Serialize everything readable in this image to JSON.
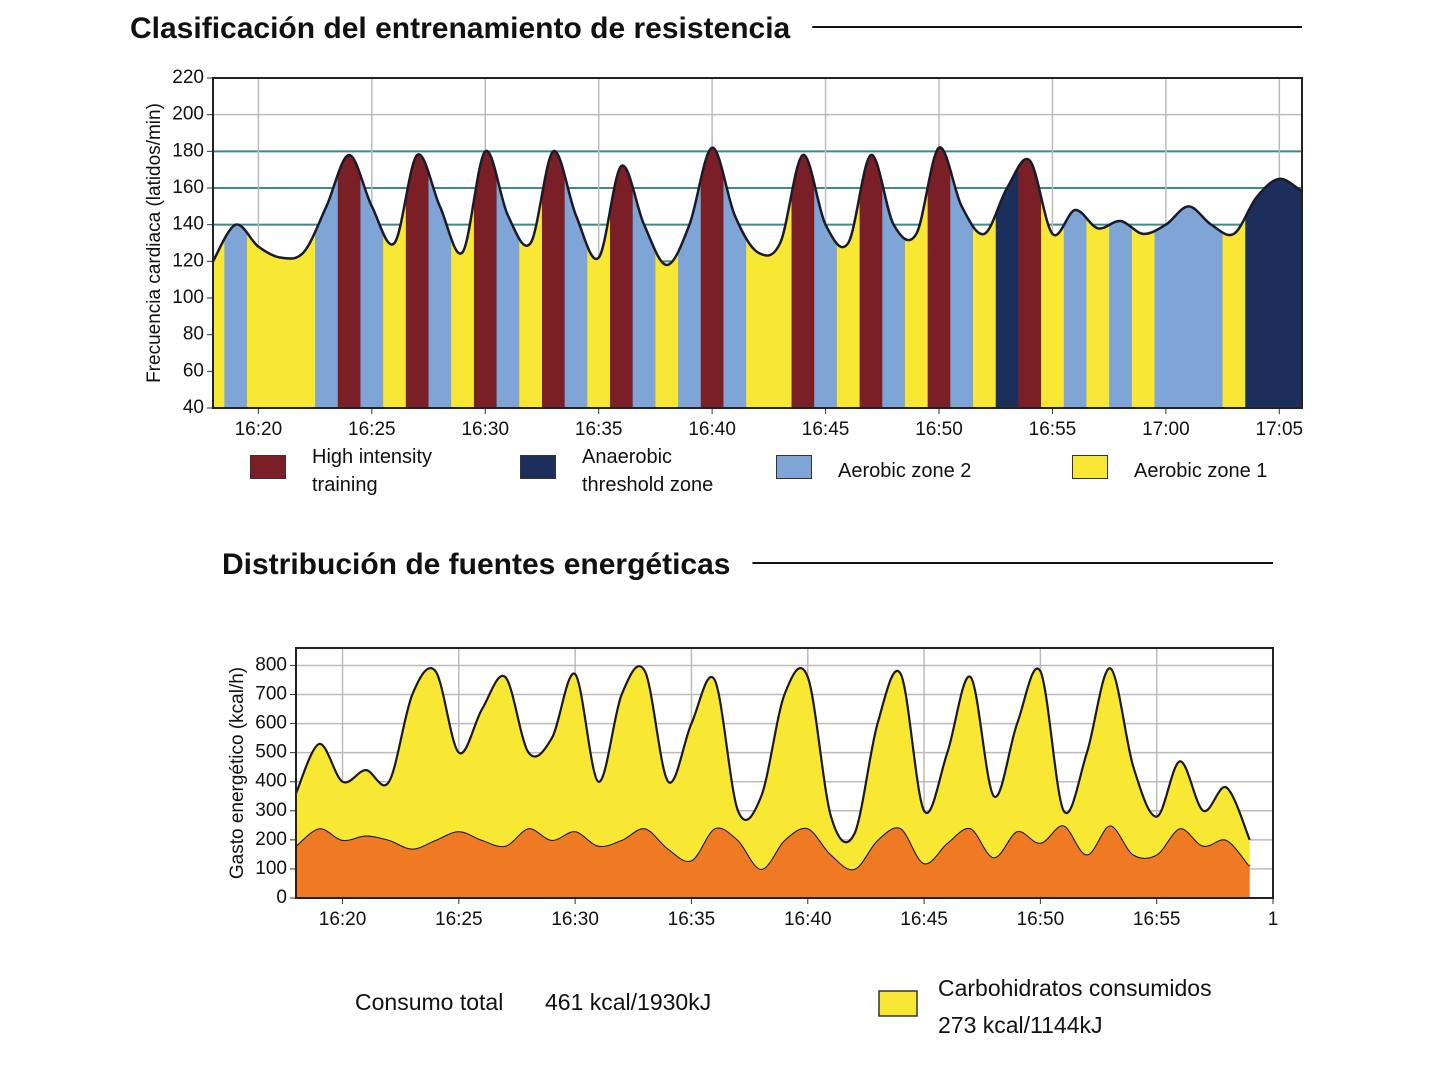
{
  "chart_data": [
    {
      "type": "zone_area",
      "title": "Clasificación del entrenamiento de resistencia",
      "y_label": "Frecuencia cardiaca (latidos/min)",
      "x": [
        "16:18",
        "16:19",
        "16:20",
        "16:21",
        "16:22",
        "16:23",
        "16:24",
        "16:25",
        "16:26",
        "16:27",
        "16:28",
        "16:29",
        "16:30",
        "16:31",
        "16:32",
        "16:33",
        "16:34",
        "16:35",
        "16:36",
        "16:37",
        "16:38",
        "16:39",
        "16:40",
        "16:41",
        "16:42",
        "16:43",
        "16:44",
        "16:45",
        "16:46",
        "16:47",
        "16:48",
        "16:49",
        "16:50",
        "16:51",
        "16:52",
        "16:53",
        "16:54",
        "16:55",
        "16:56",
        "16:57",
        "16:58",
        "16:59",
        "17:00",
        "17:01",
        "17:02",
        "17:03",
        "17:04",
        "17:05",
        "17:06"
      ],
      "values": [
        120,
        140,
        128,
        122,
        125,
        150,
        178,
        150,
        130,
        178,
        150,
        125,
        180,
        145,
        130,
        180,
        145,
        122,
        172,
        140,
        118,
        140,
        182,
        145,
        125,
        130,
        178,
        140,
        130,
        178,
        140,
        135,
        182,
        150,
        135,
        160,
        175,
        135,
        148,
        138,
        142,
        135,
        140,
        150,
        140,
        135,
        155,
        165,
        158
      ],
      "zone": [
        3,
        2,
        3,
        3,
        3,
        2,
        0,
        2,
        3,
        0,
        2,
        3,
        0,
        2,
        3,
        0,
        2,
        3,
        0,
        2,
        3,
        2,
        0,
        2,
        3,
        3,
        0,
        2,
        3,
        0,
        2,
        3,
        0,
        2,
        3,
        1,
        0,
        3,
        2,
        3,
        2,
        3,
        2,
        2,
        2,
        3,
        1,
        1,
        1
      ],
      "zones": [
        {
          "name": "High intensity training",
          "color": "#7a1f26"
        },
        {
          "name": "Anaerobic threshold zone",
          "color": "#1c2f5c"
        },
        {
          "name": "Aerobic zone 2",
          "color": "#7ea5d6"
        },
        {
          "name": "Aerobic zone 1",
          "color": "#f8e834"
        }
      ],
      "xlim": [
        "16:18",
        "17:06"
      ],
      "xticks": [
        "16:20",
        "16:25",
        "16:30",
        "16:35",
        "16:40",
        "16:45",
        "16:50",
        "16:55",
        "17:00",
        "17:05"
      ],
      "ylim": [
        40,
        220
      ],
      "yticks": [
        40,
        60,
        80,
        100,
        120,
        140,
        160,
        180,
        200,
        220
      ],
      "grid": true
    },
    {
      "type": "stacked_area",
      "title": "Distribución de fuentes energéticas",
      "y_label": "Gasto energético (kcal/h)",
      "x": [
        "16:18",
        "16:19",
        "16:20",
        "16:21",
        "16:22",
        "16:23",
        "16:24",
        "16:25",
        "16:26",
        "16:27",
        "16:28",
        "16:29",
        "16:30",
        "16:31",
        "16:32",
        "16:33",
        "16:34",
        "16:35",
        "16:36",
        "16:37",
        "16:38",
        "16:39",
        "16:40",
        "16:41",
        "16:42",
        "16:43",
        "16:44",
        "16:45",
        "16:46",
        "16:47",
        "16:48",
        "16:49",
        "16:50",
        "16:51",
        "16:52",
        "16:53",
        "16:54",
        "16:55",
        "16:56",
        "16:57",
        "16:58",
        "16:59"
      ],
      "series": [
        {
          "color": "#f07a24",
          "values": [
            180,
            240,
            200,
            215,
            200,
            170,
            200,
            230,
            200,
            180,
            240,
            200,
            230,
            180,
            200,
            240,
            170,
            130,
            240,
            200,
            100,
            200,
            240,
            150,
            100,
            200,
            240,
            120,
            190,
            240,
            140,
            230,
            190,
            250,
            150,
            250,
            150,
            150,
            240,
            180,
            200,
            110
          ]
        },
        {
          "name": "Carbohidratos consumidos",
          "color": "#f8e834",
          "values": [
            180,
            290,
            200,
            225,
            200,
            530,
            580,
            270,
            450,
            580,
            260,
            350,
            540,
            220,
            500,
            540,
            230,
            470,
            510,
            100,
            250,
            500,
            520,
            130,
            120,
            400,
            530,
            180,
            310,
            520,
            210,
            370,
            590,
            50,
            350,
            540,
            300,
            130,
            230,
            120,
            180,
            90
          ]
        }
      ],
      "xlim": [
        "16:18",
        "17:00"
      ],
      "xticks": [
        "16:20",
        "16:25",
        "16:30",
        "16:35",
        "16:40",
        "16:45",
        "16:50",
        "16:55",
        {
          "value": "17:00",
          "label": "1"
        }
      ],
      "ylim": [
        0,
        860
      ],
      "yticks": [
        0,
        100,
        200,
        300,
        400,
        500,
        600,
        700,
        800
      ],
      "grid": true,
      "total_label": "Consumo total",
      "total_value": "461 kcal/1930kJ",
      "carb_value": "273 kcal/1144kJ"
    }
  ]
}
